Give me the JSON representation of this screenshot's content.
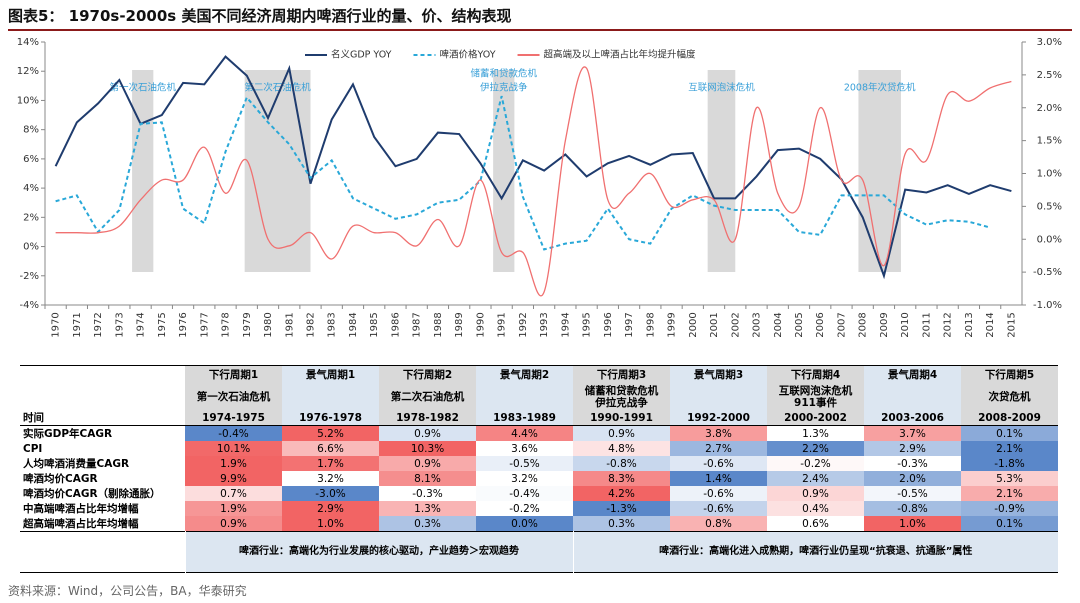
{
  "header": {
    "title": "图表5：  1970s-2000s 美国不同经济周期内啤酒行业的量、价、结构表现"
  },
  "chart_data": {
    "type": "line",
    "categories": [
      "1970",
      "1971",
      "1972",
      "1973",
      "1974",
      "1975",
      "1976",
      "1977",
      "1978",
      "1979",
      "1980",
      "1981",
      "1982",
      "1983",
      "1984",
      "1985",
      "1986",
      "1987",
      "1988",
      "1989",
      "1990",
      "1991",
      "1992",
      "1993",
      "1994",
      "1995",
      "1996",
      "1997",
      "1998",
      "1999",
      "2000",
      "2001",
      "2002",
      "2003",
      "2004",
      "2005",
      "2006",
      "2007",
      "2008",
      "2009",
      "2010",
      "2011",
      "2012",
      "2013",
      "2014",
      "2015"
    ],
    "series": [
      {
        "name": "名义GDP YOY",
        "color": "#1f3c6e",
        "style": "solid",
        "values": [
          5.5,
          8.5,
          9.8,
          11.4,
          8.4,
          9.0,
          11.2,
          11.1,
          13.0,
          11.7,
          8.8,
          12.2,
          4.3,
          8.7,
          11.1,
          7.5,
          5.5,
          6.0,
          7.8,
          7.7,
          5.7,
          3.3,
          5.9,
          5.2,
          6.3,
          4.8,
          5.7,
          6.2,
          5.6,
          6.3,
          6.4,
          3.3,
          3.3,
          4.8,
          6.6,
          6.7,
          6.0,
          4.6,
          2.0,
          -2.0,
          3.9,
          3.7,
          4.2,
          3.6,
          4.2,
          3.8
        ]
      },
      {
        "name": "啤酒价格YOY",
        "color": "#29a8d8",
        "style": "dashed",
        "values": [
          3.1,
          3.5,
          1.0,
          2.5,
          8.4,
          8.5,
          2.6,
          1.6,
          6.5,
          10.2,
          8.5,
          7.0,
          4.7,
          5.9,
          3.3,
          2.6,
          1.9,
          2.2,
          3.0,
          3.2,
          4.5,
          10.3,
          3.4,
          -0.2,
          0.2,
          0.4,
          2.6,
          0.5,
          0.2,
          2.6,
          3.5,
          2.8,
          2.5,
          2.5,
          2.5,
          1.0,
          0.8,
          3.5,
          3.5,
          3.5,
          2.2,
          1.5,
          1.8,
          1.7,
          1.3,
          null
        ]
      },
      {
        "name": "超高端及以上啤酒占比年均提升幅度",
        "color": "#f07070",
        "style": "solid",
        "axis": "y2",
        "values": [
          0.1,
          0.1,
          0.1,
          0.2,
          0.6,
          0.9,
          0.9,
          1.4,
          0.7,
          1.2,
          0.0,
          -0.1,
          0.1,
          -0.3,
          0.2,
          0.1,
          0.1,
          -0.1,
          0.3,
          -0.1,
          0.9,
          -0.2,
          -0.2,
          -0.8,
          1.5,
          2.6,
          0.6,
          0.7,
          1.0,
          0.5,
          0.6,
          0.6,
          0.0,
          2.0,
          0.7,
          0.5,
          2.0,
          0.9,
          0.9,
          -0.4,
          1.3,
          1.2,
          2.2,
          2.1,
          2.3,
          2.4
        ]
      }
    ],
    "ylim": [
      -4,
      14
    ],
    "yticks": [
      {
        "value": -4,
        "label": "-4%"
      },
      {
        "value": -2,
        "label": "-2%"
      },
      {
        "value": 0,
        "label": "0%"
      },
      {
        "value": 2,
        "label": "2%"
      },
      {
        "value": 4,
        "label": "4%"
      },
      {
        "value": 6,
        "label": "6%"
      },
      {
        "value": 8,
        "label": "8%"
      },
      {
        "value": 10,
        "label": "10%"
      },
      {
        "value": 12,
        "label": "12%"
      },
      {
        "value": 14,
        "label": "14%"
      }
    ],
    "y2lim": [
      -1,
      3
    ],
    "y2ticks": [
      {
        "value": -1,
        "label": "-1.0%"
      },
      {
        "value": -0.5,
        "label": "-0.5%"
      },
      {
        "value": 0,
        "label": "0.0%"
      },
      {
        "value": 0.5,
        "label": "0.5%"
      },
      {
        "value": 1,
        "label": "1.0%"
      },
      {
        "value": 1.5,
        "label": "1.5%"
      },
      {
        "value": 2,
        "label": "2.0%"
      },
      {
        "value": 2.5,
        "label": "2.5%"
      },
      {
        "value": 3,
        "label": "3.0%"
      }
    ],
    "grid": false,
    "legend": "top",
    "periods": [
      {
        "label": [
          "第一次石油危机"
        ],
        "x": [
          1973.6,
          1974.6
        ],
        "color": "#d9d9d9"
      },
      {
        "label": [
          "第二次石油危机"
        ],
        "x": [
          1978.9,
          1982.0
        ],
        "color": "#d9d9d9"
      },
      {
        "label": [
          "储蓄和贷款危机",
          "伊拉克战争"
        ],
        "x": [
          1990.6,
          1991.6
        ],
        "color": "#d9d9d9"
      },
      {
        "label": [
          "互联网泡沫危机"
        ],
        "x": [
          2000.7,
          2002.0
        ],
        "color": "#d9d9d9"
      },
      {
        "label": [
          "2008年次贷危机"
        ],
        "x": [
          2007.8,
          2009.8
        ],
        "color": "#d9d9d9"
      }
    ]
  },
  "table": {
    "columns": [
      "下行周期1",
      "景气周期1",
      "下行周期2",
      "景气周期2",
      "下行周期3",
      "景气周期3",
      "下行周期4",
      "景气周期4",
      "下行周期5"
    ],
    "subtitles": [
      [
        "第一次石油危机"
      ],
      [],
      [
        "第二次石油危机"
      ],
      [],
      [
        "储蓄和贷款危机",
        "伊拉克战争"
      ],
      [],
      [
        "互联网泡沫危机",
        "911事件"
      ],
      [],
      [
        "次贷危机"
      ]
    ],
    "period_row": [
      "时间",
      "1974-1975",
      "1976-1978",
      "1978-1982",
      "1983-1989",
      "1990-1991",
      "1992-2000",
      "2000-2002",
      "2003-2006",
      "2008-2009"
    ],
    "rows": [
      [
        "实际GDP年CAGR",
        "-0.4%",
        "5.2%",
        "0.9%",
        "4.4%",
        "0.9%",
        "3.8%",
        "1.3%",
        "3.7%",
        "0.1%"
      ],
      [
        "CPI",
        "10.1%",
        "6.6%",
        "10.3%",
        "3.6%",
        "4.8%",
        "2.7%",
        "2.2%",
        "2.9%",
        "2.1%"
      ],
      [
        "人均啤酒消费量CAGR",
        "1.9%",
        "1.7%",
        "0.9%",
        "-0.5%",
        "-0.8%",
        "-0.6%",
        "-0.2%",
        "-0.3%",
        "-1.8%"
      ],
      [
        "啤酒均价CAGR",
        "9.9%",
        "3.2%",
        "8.1%",
        "3.2%",
        "8.3%",
        "1.4%",
        "2.4%",
        "2.0%",
        "5.3%"
      ],
      [
        "啤酒均价CAGR（剔除通胀）",
        "0.7%",
        "-3.0%",
        "-0.3%",
        "-0.4%",
        "4.2%",
        "-0.6%",
        "0.9%",
        "-0.5%",
        "2.1%"
      ],
      [
        "中高端啤酒占比年均增幅",
        "1.9%",
        "2.9%",
        "1.3%",
        "-0.2%",
        "-1.3%",
        "-0.6%",
        "0.4%",
        "-0.8%",
        "-0.9%"
      ],
      [
        "超高端啤酒占比年均增幅",
        "0.9%",
        "1.0%",
        "0.3%",
        "0.0%",
        "0.3%",
        "0.8%",
        "0.6%",
        "1.0%",
        "0.1%"
      ]
    ],
    "notes": [
      "啤酒行业：高端化为行业发展的核心驱动，产业趋势＞宏观趋势",
      "啤酒行业：高端化进入成熟期，啤酒行业仍呈现“抗衰退、抗通胀”属性"
    ]
  },
  "footer": {
    "source": "资料来源：Wind，公司公告，BA，华泰研究"
  }
}
